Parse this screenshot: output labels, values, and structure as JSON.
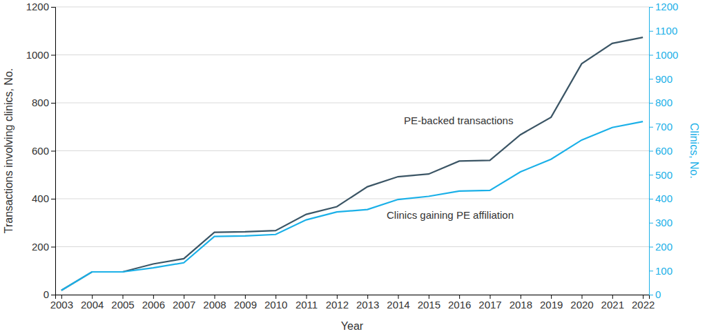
{
  "chart_data": {
    "type": "line",
    "x_label": "Year",
    "y_label": "Transactions involving clinics, No.",
    "y2_label": "Clinics, No.",
    "x": [
      2003,
      2004,
      2005,
      2006,
      2007,
      2008,
      2009,
      2010,
      2011,
      2012,
      2013,
      2014,
      2015,
      2016,
      2017,
      2018,
      2019,
      2020,
      2021,
      2022
    ],
    "series": [
      {
        "name": "PE-backed transactions",
        "color": "#3b5565",
        "values": [
          18,
          95,
          95,
          128,
          150,
          260,
          262,
          267,
          335,
          367,
          450,
          492,
          503,
          557,
          560,
          667,
          740,
          963,
          1048,
          1073
        ]
      },
      {
        "name": "Clinics gaining PE affiliation",
        "color": "#1ab0e8",
        "axis": "y2",
        "values": [
          18,
          95,
          95,
          112,
          133,
          243,
          245,
          251,
          312,
          345,
          355,
          397,
          410,
          432,
          435,
          512,
          565,
          645,
          697,
          722
        ]
      }
    ],
    "xlim": [
      2002.8,
      2022.2
    ],
    "xticks": [
      2003,
      2004,
      2005,
      2006,
      2007,
      2008,
      2009,
      2010,
      2011,
      2012,
      2013,
      2014,
      2015,
      2016,
      2017,
      2018,
      2019,
      2020,
      2021,
      2022
    ],
    "ylim": [
      0,
      1200
    ],
    "yticks": [
      0,
      200,
      400,
      600,
      800,
      1000,
      1200
    ],
    "y2lim": [
      0,
      1200
    ],
    "y2ticks": [
      0,
      100,
      200,
      300,
      400,
      500,
      600,
      700,
      800,
      900,
      1000,
      1100,
      1200
    ],
    "grid": true
  }
}
